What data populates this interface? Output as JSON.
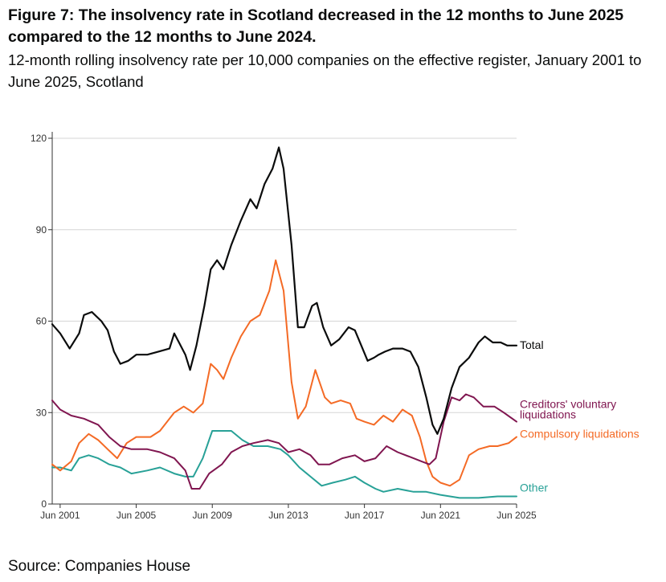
{
  "title": "Figure 7: The insolvency rate in Scotland decreased in the 12 months to June 2025 compared to the 12 months to June 2024.",
  "subtitle": "12-month rolling insolvency rate per 10,000 companies on the effective register, January 2001 to June 2025, Scotland",
  "source": "Source: Companies House",
  "chart_data": {
    "type": "line",
    "y_ticks": [
      "0",
      "30",
      "60",
      "90",
      "120"
    ],
    "ylim": [
      0,
      120
    ],
    "xlim": [
      "2001-01",
      "2025-06"
    ],
    "x_ticks": [
      "Jun 2001",
      "Jun 2005",
      "Jun 2009",
      "Jun 2013",
      "Jun 2017",
      "Jun 2021",
      "Jun 2025"
    ],
    "x_tick_dates": [
      "2001-06",
      "2005-06",
      "2009-06",
      "2013-06",
      "2017-06",
      "2021-06",
      "2025-06"
    ],
    "grid": "horizontal",
    "series": [
      {
        "name": "Total",
        "color": "#0b0c0c",
        "points": [
          [
            "2001-01",
            59
          ],
          [
            "2001-06",
            56
          ],
          [
            "2001-12",
            51
          ],
          [
            "2002-06",
            56
          ],
          [
            "2002-09",
            62
          ],
          [
            "2003-02",
            63
          ],
          [
            "2003-08",
            60
          ],
          [
            "2003-12",
            57
          ],
          [
            "2004-04",
            50
          ],
          [
            "2004-08",
            46
          ],
          [
            "2005-01",
            47
          ],
          [
            "2005-06",
            49
          ],
          [
            "2006-01",
            49
          ],
          [
            "2006-08",
            50
          ],
          [
            "2007-03",
            51
          ],
          [
            "2007-06",
            56
          ],
          [
            "2007-09",
            53
          ],
          [
            "2008-01",
            49
          ],
          [
            "2008-04",
            44
          ],
          [
            "2008-08",
            52
          ],
          [
            "2009-01",
            65
          ],
          [
            "2009-05",
            77
          ],
          [
            "2009-09",
            80
          ],
          [
            "2010-01",
            77
          ],
          [
            "2010-06",
            85
          ],
          [
            "2010-12",
            93
          ],
          [
            "2011-06",
            100
          ],
          [
            "2011-10",
            97
          ],
          [
            "2012-03",
            105
          ],
          [
            "2012-08",
            110
          ],
          [
            "2012-12",
            117
          ],
          [
            "2013-03",
            110
          ],
          [
            "2013-08",
            85
          ],
          [
            "2013-12",
            58
          ],
          [
            "2014-04",
            58
          ],
          [
            "2014-09",
            65
          ],
          [
            "2014-12",
            66
          ],
          [
            "2015-04",
            58
          ],
          [
            "2015-09",
            52
          ],
          [
            "2016-02",
            54
          ],
          [
            "2016-08",
            58
          ],
          [
            "2016-12",
            57
          ],
          [
            "2017-04",
            52
          ],
          [
            "2017-08",
            47
          ],
          [
            "2017-12",
            48
          ],
          [
            "2018-03",
            49
          ],
          [
            "2018-07",
            50
          ],
          [
            "2018-12",
            51
          ],
          [
            "2019-06",
            51
          ],
          [
            "2019-11",
            50
          ],
          [
            "2020-04",
            45
          ],
          [
            "2020-09",
            35
          ],
          [
            "2021-01",
            26
          ],
          [
            "2021-04",
            23
          ],
          [
            "2021-08",
            28
          ],
          [
            "2022-01",
            38
          ],
          [
            "2022-06",
            45
          ],
          [
            "2022-12",
            48
          ],
          [
            "2023-06",
            53
          ],
          [
            "2023-10",
            55
          ],
          [
            "2024-03",
            53
          ],
          [
            "2024-08",
            53
          ],
          [
            "2024-12",
            52
          ],
          [
            "2025-06",
            52
          ]
        ]
      },
      {
        "name": "Creditors' voluntary liquidations",
        "color": "#801650",
        "points": [
          [
            "2001-01",
            34
          ],
          [
            "2001-06",
            31
          ],
          [
            "2002-01",
            29
          ],
          [
            "2002-09",
            28
          ],
          [
            "2003-06",
            26
          ],
          [
            "2004-01",
            22
          ],
          [
            "2004-08",
            19
          ],
          [
            "2005-03",
            18
          ],
          [
            "2006-01",
            18
          ],
          [
            "2006-09",
            17
          ],
          [
            "2007-06",
            15
          ],
          [
            "2008-01",
            11
          ],
          [
            "2008-05",
            5
          ],
          [
            "2008-10",
            5
          ],
          [
            "2009-04",
            10
          ],
          [
            "2009-12",
            13
          ],
          [
            "2010-06",
            17
          ],
          [
            "2011-01",
            19
          ],
          [
            "2011-08",
            20
          ],
          [
            "2012-05",
            21
          ],
          [
            "2012-12",
            20
          ],
          [
            "2013-06",
            17
          ],
          [
            "2014-01",
            18
          ],
          [
            "2014-08",
            16
          ],
          [
            "2015-01",
            13
          ],
          [
            "2015-08",
            13
          ],
          [
            "2016-04",
            15
          ],
          [
            "2016-12",
            16
          ],
          [
            "2017-06",
            14
          ],
          [
            "2018-01",
            15
          ],
          [
            "2018-08",
            19
          ],
          [
            "2019-03",
            17
          ],
          [
            "2020-01",
            15
          ],
          [
            "2020-06",
            14
          ],
          [
            "2020-11",
            13
          ],
          [
            "2021-03",
            15
          ],
          [
            "2021-08",
            27
          ],
          [
            "2022-01",
            35
          ],
          [
            "2022-06",
            34
          ],
          [
            "2022-10",
            36
          ],
          [
            "2023-03",
            35
          ],
          [
            "2023-09",
            32
          ],
          [
            "2024-04",
            32
          ],
          [
            "2024-10",
            30
          ],
          [
            "2025-06",
            27
          ]
        ]
      },
      {
        "name": "Compulsory liquidations",
        "color": "#f46a25",
        "points": [
          [
            "2001-01",
            13
          ],
          [
            "2001-06",
            11
          ],
          [
            "2002-01",
            14
          ],
          [
            "2002-06",
            20
          ],
          [
            "2002-12",
            23
          ],
          [
            "2003-06",
            21
          ],
          [
            "2003-12",
            18
          ],
          [
            "2004-06",
            15
          ],
          [
            "2004-12",
            20
          ],
          [
            "2005-06",
            22
          ],
          [
            "2006-03",
            22
          ],
          [
            "2006-09",
            24
          ],
          [
            "2007-06",
            30
          ],
          [
            "2007-12",
            32
          ],
          [
            "2008-06",
            30
          ],
          [
            "2008-12",
            33
          ],
          [
            "2009-05",
            46
          ],
          [
            "2009-09",
            44
          ],
          [
            "2010-01",
            41
          ],
          [
            "2010-06",
            48
          ],
          [
            "2010-12",
            55
          ],
          [
            "2011-06",
            60
          ],
          [
            "2011-12",
            62
          ],
          [
            "2012-06",
            70
          ],
          [
            "2012-10",
            80
          ],
          [
            "2013-03",
            70
          ],
          [
            "2013-08",
            40
          ],
          [
            "2013-12",
            28
          ],
          [
            "2014-05",
            32
          ],
          [
            "2014-11",
            44
          ],
          [
            "2015-05",
            35
          ],
          [
            "2015-09",
            33
          ],
          [
            "2016-03",
            34
          ],
          [
            "2016-09",
            33
          ],
          [
            "2017-01",
            28
          ],
          [
            "2017-06",
            27
          ],
          [
            "2017-12",
            26
          ],
          [
            "2018-06",
            29
          ],
          [
            "2018-12",
            27
          ],
          [
            "2019-06",
            31
          ],
          [
            "2019-12",
            29
          ],
          [
            "2020-05",
            22
          ],
          [
            "2020-09",
            14
          ],
          [
            "2021-01",
            9
          ],
          [
            "2021-06",
            7
          ],
          [
            "2021-12",
            6
          ],
          [
            "2022-06",
            8
          ],
          [
            "2022-12",
            16
          ],
          [
            "2023-06",
            18
          ],
          [
            "2024-01",
            19
          ],
          [
            "2024-06",
            19
          ],
          [
            "2025-01",
            20
          ],
          [
            "2025-06",
            22
          ]
        ]
      },
      {
        "name": "Other",
        "color": "#28a197",
        "points": [
          [
            "2001-01",
            12
          ],
          [
            "2001-06",
            12
          ],
          [
            "2002-01",
            11
          ],
          [
            "2002-06",
            15
          ],
          [
            "2002-12",
            16
          ],
          [
            "2003-06",
            15
          ],
          [
            "2004-01",
            13
          ],
          [
            "2004-08",
            12
          ],
          [
            "2005-03",
            10
          ],
          [
            "2006-01",
            11
          ],
          [
            "2006-09",
            12
          ],
          [
            "2007-06",
            10
          ],
          [
            "2008-01",
            9
          ],
          [
            "2008-06",
            9
          ],
          [
            "2008-12",
            15
          ],
          [
            "2009-06",
            24
          ],
          [
            "2010-01",
            24
          ],
          [
            "2010-06",
            24
          ],
          [
            "2011-01",
            21
          ],
          [
            "2011-08",
            19
          ],
          [
            "2012-05",
            19
          ],
          [
            "2013-01",
            18
          ],
          [
            "2013-06",
            16
          ],
          [
            "2014-01",
            12
          ],
          [
            "2014-08",
            9
          ],
          [
            "2015-03",
            6
          ],
          [
            "2015-10",
            7
          ],
          [
            "2016-06",
            8
          ],
          [
            "2016-12",
            9
          ],
          [
            "2017-06",
            7
          ],
          [
            "2018-01",
            5
          ],
          [
            "2018-06",
            4
          ],
          [
            "2019-03",
            5
          ],
          [
            "2020-01",
            4
          ],
          [
            "2020-09",
            4
          ],
          [
            "2021-06",
            3
          ],
          [
            "2022-06",
            2
          ],
          [
            "2023-06",
            2
          ],
          [
            "2024-06",
            2.5
          ],
          [
            "2025-06",
            2.5
          ]
        ]
      }
    ]
  }
}
